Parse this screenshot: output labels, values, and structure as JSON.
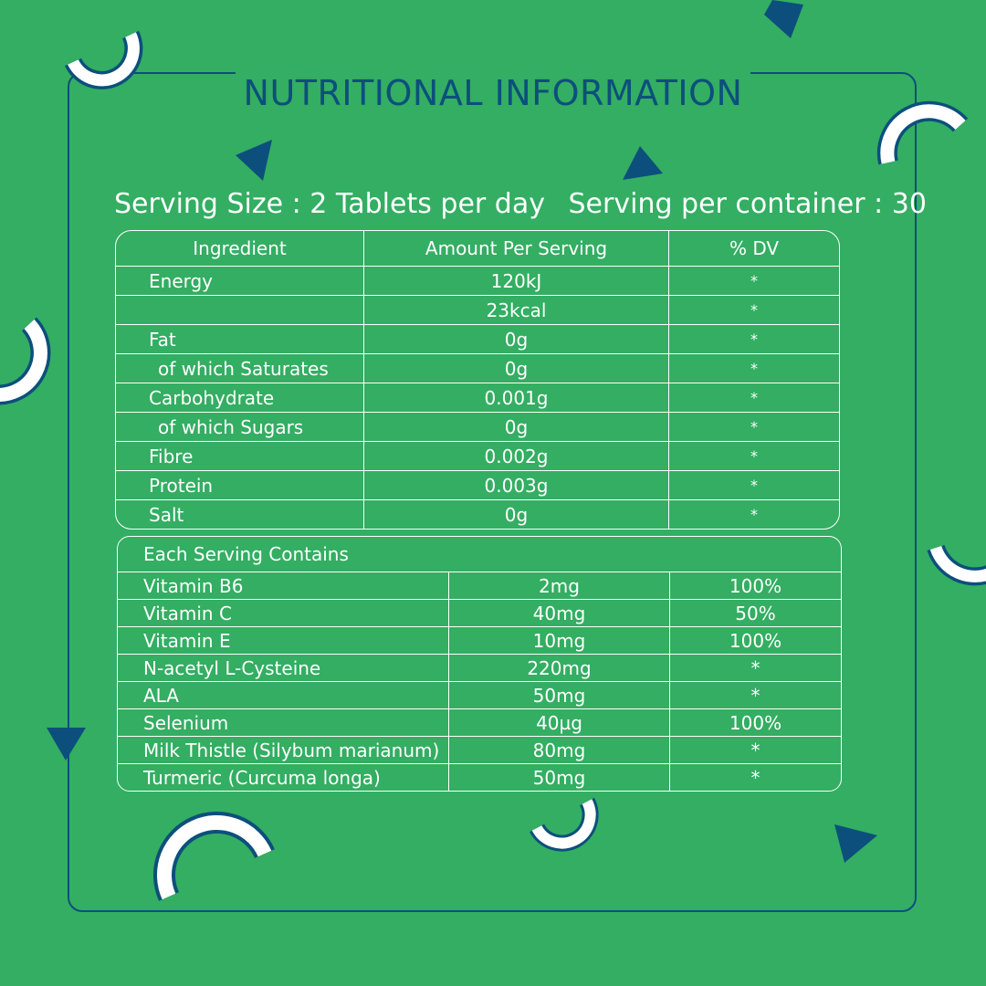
{
  "title": "NUTRITIONAL INFORMATION",
  "serving": {
    "size": "Serving Size : 2 Tablets per day",
    "per_container": "Serving per container : 30"
  },
  "nutrition_table": {
    "headers": [
      "Ingredient",
      "Amount Per Serving",
      "% DV"
    ],
    "rows": [
      {
        "name": "Energy",
        "amount": "120kJ",
        "dv": "*"
      },
      {
        "name": "",
        "amount": "23kcal",
        "dv": "*"
      },
      {
        "name": "Fat",
        "amount": "0g",
        "dv": "*"
      },
      {
        "name": "of which Saturates",
        "amount": "0g",
        "dv": "*"
      },
      {
        "name": "Carbohydrate",
        "amount": "0.001g",
        "dv": "*"
      },
      {
        "name": "of which Sugars",
        "amount": "0g",
        "dv": "*"
      },
      {
        "name": "Fibre",
        "amount": "0.002g",
        "dv": "*"
      },
      {
        "name": "Protein",
        "amount": "0.003g",
        "dv": "*"
      },
      {
        "name": "Salt",
        "amount": "0g",
        "dv": "*"
      }
    ]
  },
  "serving_table": {
    "heading": "Each Serving Contains",
    "rows": [
      {
        "name": "Vitamin B6",
        "amount": "2mg",
        "dv": "100%"
      },
      {
        "name": "Vitamin C",
        "amount": "40mg",
        "dv": "50%"
      },
      {
        "name": "Vitamin E",
        "amount": "10mg",
        "dv": "100%"
      },
      {
        "name": "N-acetyl L-Cysteine",
        "amount": "220mg",
        "dv": "*"
      },
      {
        "name": "ALA",
        "amount": "50mg",
        "dv": "*"
      },
      {
        "name": "Selenium",
        "amount": "40µg",
        "dv": "100%"
      },
      {
        "name": "Milk Thistle (Silybum marianum)",
        "amount": "80mg",
        "dv": "*"
      },
      {
        "name": "Turmeric (Curcuma longa)",
        "amount": "50mg",
        "dv": "*"
      }
    ]
  },
  "colors": {
    "background": "#33ae62",
    "accent": "#0c4f7c",
    "text": "#ffffff"
  }
}
